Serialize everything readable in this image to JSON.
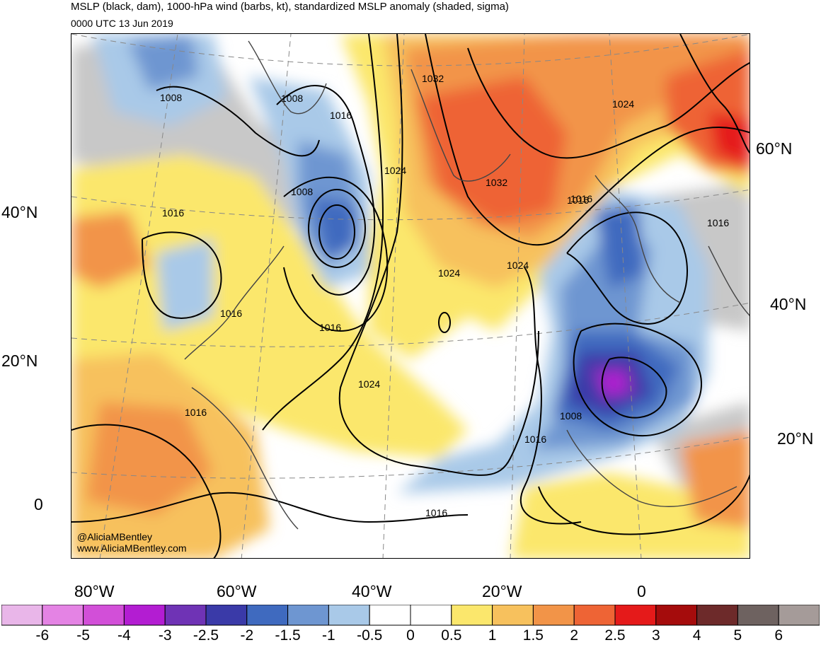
{
  "title": "MSLP (black, dam), 1000-hPa wind (barbs, kt), standardized MSLP anomaly (shaded, sigma)",
  "valid_time": "0000 UTC 13 Jun 2019",
  "credits": {
    "handle": "@AliciaMBentley",
    "website": "www.AliciaMBentley.com"
  },
  "map": {
    "lat_labels_left": [
      "40°N",
      "20°N",
      "0"
    ],
    "lat_labels_right": [
      "60°N",
      "40°N",
      "20°N"
    ],
    "lon_labels": [
      "80°W",
      "60°W",
      "40°W",
      "20°W",
      "0"
    ],
    "isobar_labels": [
      "1008",
      "1008",
      "1016",
      "1008",
      "1016",
      "1032",
      "1024",
      "1032",
      "1024",
      "1016",
      "1024",
      "1024",
      "1016",
      "1016",
      "1016",
      "1024",
      "1016",
      "1008",
      "1016",
      "1016",
      "1016"
    ],
    "colors": {
      "land_gray": "#c8c8c8",
      "isobar": "#000000",
      "coast": "#444444"
    }
  },
  "colorbar": {
    "labels": [
      "-6",
      "-5",
      "-4",
      "-3",
      "-2.5",
      "-2",
      "-1.5",
      "-1",
      "-0.5",
      "0",
      "0.5",
      "1",
      "1.5",
      "2",
      "2.5",
      "3",
      "4",
      "5",
      "6"
    ],
    "colors": [
      "#e9b6e9",
      "#e483e4",
      "#d24fd8",
      "#b31dd2",
      "#6f33b5",
      "#3a3aa8",
      "#3f6abf",
      "#6e96d1",
      "#a9c9e8",
      "#ffffff",
      "#ffffff",
      "#fbe76c",
      "#f7c15d",
      "#f29448",
      "#ee6435",
      "#e51a1a",
      "#a50c0c",
      "#6d2a2a",
      "#6e6260",
      "#a59b99"
    ]
  }
}
